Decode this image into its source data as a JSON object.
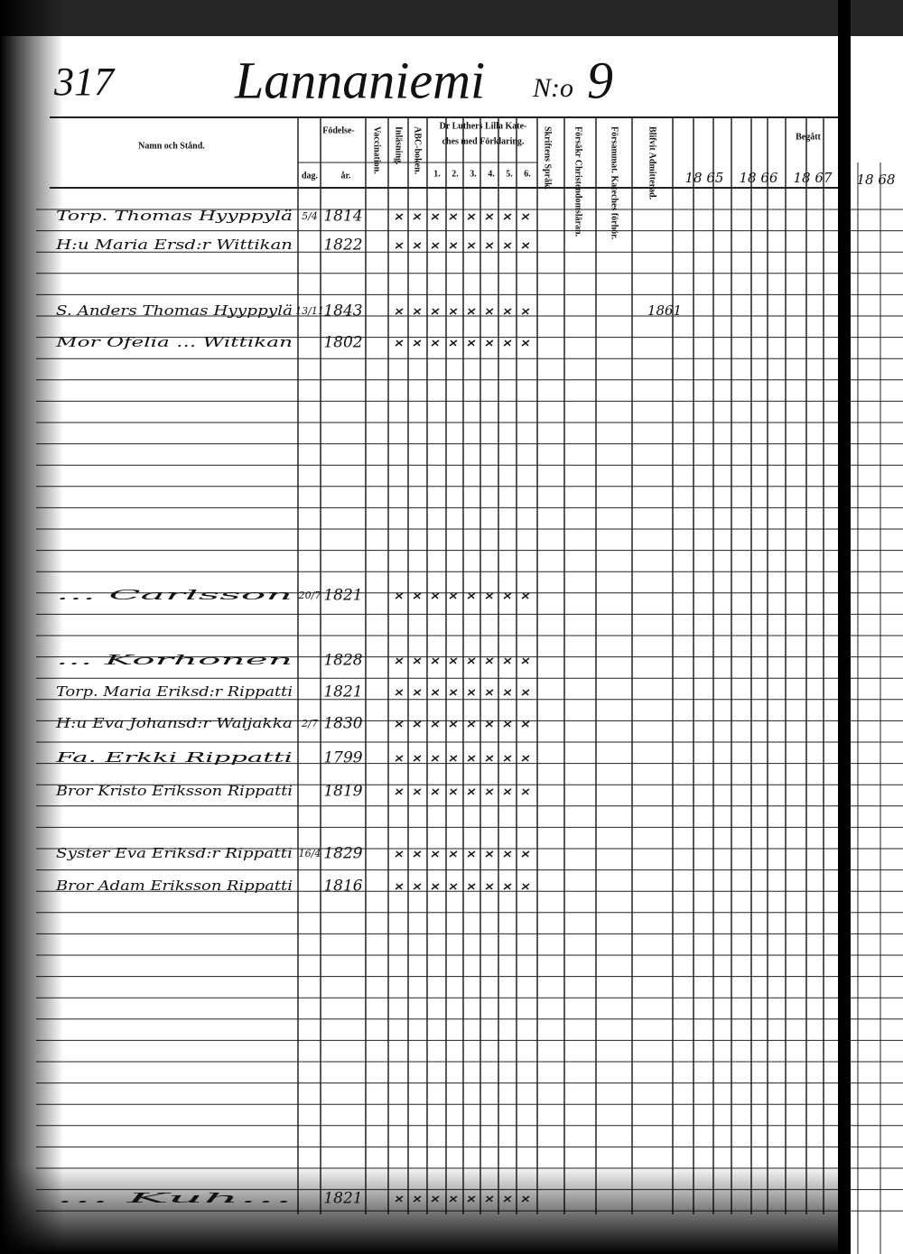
{
  "page_number": "317",
  "title": "Lannaniemi",
  "number_label": "N:o",
  "number": "9",
  "header": {
    "name": "Namn och Stånd.",
    "birth": "Födelse-",
    "birth_day": "dag.",
    "birth_year": "år.",
    "vaccination": "Vaccination.",
    "reading": "Inläsning.",
    "abc": "ABC-boken.",
    "catechism_1": "Dr Luthers Lilla Kate-",
    "catechism_2": "ches med Förklaring.",
    "catechism_parts": [
      "1.",
      "2.",
      "3.",
      "4.",
      "5.",
      "6."
    ],
    "scripture": "Skriftens Språk.",
    "christianity": "Försäkr Christendomsläran.",
    "confirmation": "Försammat. Kateches förhör.",
    "admitted": "Blifvit Admitterad.",
    "communion": "Begått",
    "years": [
      "18 65",
      "18 66",
      "18 67"
    ],
    "next_page_year": "18 68"
  },
  "rows": [
    {
      "name": "Torp. Thomas Hyyppylä",
      "day": "5/4",
      "year": "1814"
    },
    {
      "name": "H:u Maria Ersd:r Wittikan",
      "year": "1822"
    },
    {
      "name": "S. Anders Thomas Hyyppylä",
      "day": "13/11",
      "year": "1843",
      "admitted": "1861"
    },
    {
      "name": "Mor Ofelia ... Wittikan",
      "year": "1802"
    },
    {
      "name": "... Carlsson",
      "day": "20/7",
      "year": "1821"
    },
    {
      "name": "... Korhonen",
      "year": "1828"
    },
    {
      "name": "Torp. Maria Eriksd:r Rippatti",
      "year": "1821"
    },
    {
      "name": "H:u Eva Johansd:r Waljakka",
      "day": "2/7",
      "year": "1830"
    },
    {
      "name": "Fa. Erkki Rippatti",
      "year": "1799"
    },
    {
      "name": "Bror Kristo Eriksson Rippatti",
      "year": "1819"
    },
    {
      "name": "Syster Eva Eriksd:r Rippatti",
      "day": "16/4",
      "year": "1829"
    },
    {
      "name": "Bror Adam Eriksson Rippatti",
      "year": "1816"
    },
    {
      "name": "... Kuh...",
      "year": "1821"
    }
  ]
}
